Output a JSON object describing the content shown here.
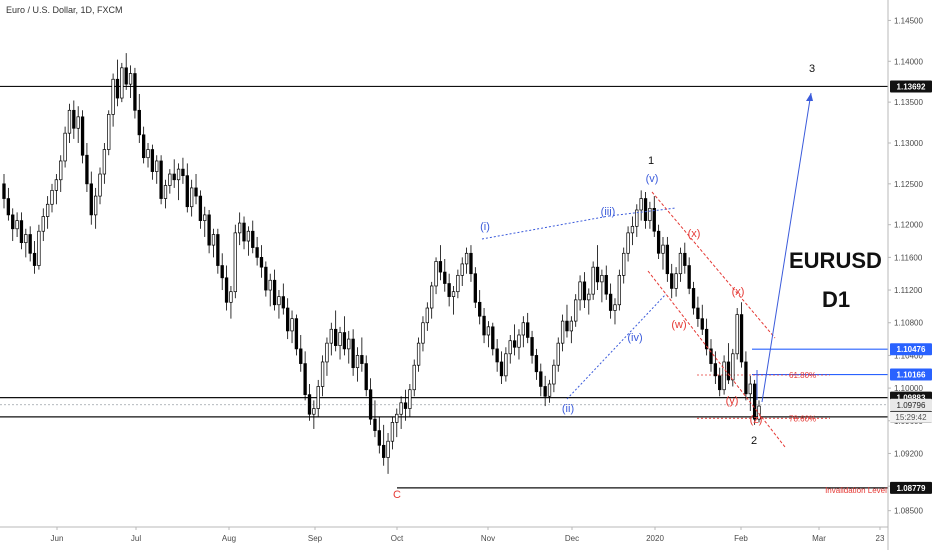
{
  "chart_data": {
    "type": "candlestick",
    "title": "Euro / U.S. Dollar, 1D, FXCM",
    "symbol_label": "EURUSD",
    "timeframe_label": "D1",
    "x_ticks": [
      "Jun",
      "Jul",
      "Aug",
      "Sep",
      "Oct",
      "Nov",
      "Dec",
      "2020",
      "Feb",
      "Mar",
      "23"
    ],
    "y_ticks": [
      "1.14500",
      "1.14000",
      "1.13500",
      "1.13000",
      "1.12500",
      "1.12000",
      "1.11600",
      "1.11200",
      "1.10800",
      "1.10400",
      "1.10000",
      "1.09600",
      "1.09200",
      "1.08800",
      "1.08500"
    ],
    "ylim": [
      1.083,
      1.1475
    ],
    "horizontal_levels": [
      {
        "price": 1.13692,
        "label": "1.13692",
        "style": "black"
      },
      {
        "price": 1.10476,
        "label": "1.10476",
        "style": "blue"
      },
      {
        "price": 1.10166,
        "label": "1.10166",
        "style": "blue"
      },
      {
        "price": 1.09883,
        "label": "1.09883",
        "style": "black"
      },
      {
        "price": 1.09648,
        "label": "1.09648",
        "style": "black"
      },
      {
        "price": 1.08779,
        "label": "1.08779",
        "style": "black"
      }
    ],
    "current_price": {
      "label": "1.09796",
      "countdown": "15:29:42"
    },
    "fib_levels": [
      {
        "label": "61.80%",
        "price": 1.1016
      },
      {
        "label": "78.60%",
        "price": 1.0963
      }
    ],
    "annotations": {
      "invalidation": "Invalidation Level",
      "wave_major": [
        "1",
        "2",
        "3",
        "C"
      ],
      "wave_minor_blue": [
        "(i)",
        "(ii)",
        "(iii)",
        "(iv)",
        "(v)"
      ],
      "wave_minor_red": [
        "(w)",
        "(x)",
        "(x)",
        "(y)",
        "(z)"
      ]
    },
    "candles": [
      [
        1.125,
        1.1262,
        1.122,
        1.1232
      ],
      [
        1.1232,
        1.1245,
        1.1205,
        1.1212
      ],
      [
        1.1212,
        1.122,
        1.118,
        1.1195
      ],
      [
        1.1195,
        1.1215,
        1.1185,
        1.1205
      ],
      [
        1.1205,
        1.1215,
        1.117,
        1.1178
      ],
      [
        1.1178,
        1.1195,
        1.116,
        1.1188
      ],
      [
        1.1188,
        1.1198,
        1.1155,
        1.1165
      ],
      [
        1.1165,
        1.118,
        1.114,
        1.115
      ],
      [
        1.115,
        1.12,
        1.1145,
        1.1192
      ],
      [
        1.1192,
        1.122,
        1.118,
        1.121
      ],
      [
        1.121,
        1.1235,
        1.1195,
        1.1225
      ],
      [
        1.1225,
        1.125,
        1.1215,
        1.1242
      ],
      [
        1.1242,
        1.1262,
        1.1225,
        1.1255
      ],
      [
        1.1255,
        1.1285,
        1.124,
        1.1278
      ],
      [
        1.1278,
        1.132,
        1.127,
        1.1312
      ],
      [
        1.1312,
        1.1348,
        1.13,
        1.134
      ],
      [
        1.134,
        1.1352,
        1.1305,
        1.1318
      ],
      [
        1.1318,
        1.1345,
        1.13,
        1.1332
      ],
      [
        1.1332,
        1.134,
        1.1275,
        1.1285
      ],
      [
        1.1285,
        1.13,
        1.124,
        1.125
      ],
      [
        1.125,
        1.1265,
        1.12,
        1.1212
      ],
      [
        1.1212,
        1.1245,
        1.1195,
        1.1235
      ],
      [
        1.1235,
        1.127,
        1.1225,
        1.1262
      ],
      [
        1.1262,
        1.13,
        1.125,
        1.1292
      ],
      [
        1.1292,
        1.134,
        1.1285,
        1.1335
      ],
      [
        1.1335,
        1.1385,
        1.132,
        1.1378
      ],
      [
        1.1378,
        1.1402,
        1.1345,
        1.1355
      ],
      [
        1.1355,
        1.1398,
        1.135,
        1.1392
      ],
      [
        1.1392,
        1.141,
        1.1365,
        1.1372
      ],
      [
        1.1372,
        1.1395,
        1.1355,
        1.1385
      ],
      [
        1.1385,
        1.1392,
        1.133,
        1.134
      ],
      [
        1.134,
        1.136,
        1.13,
        1.131
      ],
      [
        1.131,
        1.132,
        1.1275,
        1.1282
      ],
      [
        1.1282,
        1.13,
        1.127,
        1.1292
      ],
      [
        1.1292,
        1.1298,
        1.1255,
        1.1265
      ],
      [
        1.1265,
        1.1285,
        1.125,
        1.1278
      ],
      [
        1.1278,
        1.1285,
        1.1225,
        1.1232
      ],
      [
        1.1232,
        1.1255,
        1.122,
        1.1248
      ],
      [
        1.1248,
        1.1268,
        1.1238,
        1.1262
      ],
      [
        1.1262,
        1.128,
        1.1245,
        1.1255
      ],
      [
        1.1255,
        1.1275,
        1.123,
        1.1268
      ],
      [
        1.1268,
        1.1282,
        1.125,
        1.126
      ],
      [
        1.126,
        1.1275,
        1.1215,
        1.1222
      ],
      [
        1.1222,
        1.1255,
        1.121,
        1.1245
      ],
      [
        1.1245,
        1.1262,
        1.1225,
        1.1235
      ],
      [
        1.1235,
        1.1242,
        1.1195,
        1.1205
      ],
      [
        1.1205,
        1.1222,
        1.1185,
        1.1212
      ],
      [
        1.1212,
        1.1218,
        1.1165,
        1.1175
      ],
      [
        1.1175,
        1.1195,
        1.116,
        1.1188
      ],
      [
        1.1188,
        1.1195,
        1.114,
        1.115
      ],
      [
        1.115,
        1.1165,
        1.112,
        1.1135
      ],
      [
        1.1135,
        1.115,
        1.1095,
        1.1105
      ],
      [
        1.1105,
        1.1125,
        1.1085,
        1.1118
      ],
      [
        1.1118,
        1.12,
        1.111,
        1.119
      ],
      [
        1.119,
        1.1215,
        1.1175,
        1.1202
      ],
      [
        1.1202,
        1.121,
        1.117,
        1.118
      ],
      [
        1.118,
        1.1198,
        1.1162,
        1.1192
      ],
      [
        1.1192,
        1.1205,
        1.1165,
        1.1172
      ],
      [
        1.1172,
        1.1185,
        1.115,
        1.116
      ],
      [
        1.116,
        1.1175,
        1.1135,
        1.1148
      ],
      [
        1.1148,
        1.1155,
        1.1112,
        1.112
      ],
      [
        1.112,
        1.114,
        1.11,
        1.1132
      ],
      [
        1.1132,
        1.1145,
        1.1095,
        1.1102
      ],
      [
        1.1102,
        1.112,
        1.1085,
        1.1112
      ],
      [
        1.1112,
        1.1128,
        1.109,
        1.1098
      ],
      [
        1.1098,
        1.111,
        1.106,
        1.107
      ],
      [
        1.107,
        1.1095,
        1.1055,
        1.1085
      ],
      [
        1.1085,
        1.109,
        1.104,
        1.1048
      ],
      [
        1.1048,
        1.1065,
        1.102,
        1.103
      ],
      [
        1.103,
        1.1045,
        1.0985,
        1.0992
      ],
      [
        1.0992,
        1.1005,
        1.096,
        1.0968
      ],
      [
        1.0968,
        1.0985,
        1.095,
        1.0975
      ],
      [
        1.0975,
        1.101,
        1.0965,
        1.1002
      ],
      [
        1.1002,
        1.104,
        1.099,
        1.1032
      ],
      [
        1.1032,
        1.1062,
        1.1015,
        1.1055
      ],
      [
        1.1055,
        1.108,
        1.104,
        1.1072
      ],
      [
        1.1072,
        1.1095,
        1.1045,
        1.1052
      ],
      [
        1.1052,
        1.1075,
        1.1035,
        1.1068
      ],
      [
        1.1068,
        1.1088,
        1.104,
        1.1048
      ],
      [
        1.1048,
        1.107,
        1.103,
        1.106
      ],
      [
        1.106,
        1.1072,
        1.1015,
        1.1025
      ],
      [
        1.1025,
        1.105,
        1.1008,
        1.104
      ],
      [
        1.104,
        1.1062,
        1.102,
        1.103
      ],
      [
        1.103,
        1.104,
        1.099,
        1.0998
      ],
      [
        1.0998,
        1.1012,
        1.0955,
        1.0962
      ],
      [
        1.0962,
        1.0985,
        1.094,
        1.0948
      ],
      [
        1.0948,
        1.0965,
        1.092,
        1.093
      ],
      [
        1.093,
        1.0955,
        1.0905,
        1.0915
      ],
      [
        1.0915,
        1.0945,
        1.0895,
        1.0935
      ],
      [
        1.0935,
        1.0965,
        1.0925,
        1.0958
      ],
      [
        1.0958,
        1.0975,
        1.094,
        1.0968
      ],
      [
        1.0968,
        1.099,
        1.095,
        1.0982
      ],
      [
        1.0982,
        1.0998,
        1.096,
        1.0975
      ],
      [
        1.0975,
        1.1005,
        1.0965,
        1.0998
      ],
      [
        1.0998,
        1.1035,
        1.099,
        1.1028
      ],
      [
        1.1028,
        1.1062,
        1.102,
        1.1055
      ],
      [
        1.1055,
        1.1088,
        1.1045,
        1.108
      ],
      [
        1.108,
        1.1105,
        1.107,
        1.1098
      ],
      [
        1.1098,
        1.113,
        1.1085,
        1.1125
      ],
      [
        1.1125,
        1.116,
        1.1115,
        1.1155
      ],
      [
        1.1155,
        1.1175,
        1.1132,
        1.1142
      ],
      [
        1.1142,
        1.1158,
        1.1118,
        1.1128
      ],
      [
        1.1128,
        1.114,
        1.11,
        1.1112
      ],
      [
        1.1112,
        1.1125,
        1.109,
        1.1118
      ],
      [
        1.1118,
        1.1145,
        1.111,
        1.1138
      ],
      [
        1.1138,
        1.116,
        1.1125,
        1.1152
      ],
      [
        1.1152,
        1.1172,
        1.114,
        1.1165
      ],
      [
        1.1165,
        1.1175,
        1.113,
        1.114
      ],
      [
        1.114,
        1.1148,
        1.1098,
        1.1105
      ],
      [
        1.1105,
        1.112,
        1.1078,
        1.1088
      ],
      [
        1.1088,
        1.1098,
        1.1055,
        1.1065
      ],
      [
        1.1065,
        1.1082,
        1.105,
        1.1075
      ],
      [
        1.1075,
        1.108,
        1.104,
        1.1048
      ],
      [
        1.1048,
        1.106,
        1.102,
        1.1032
      ],
      [
        1.1032,
        1.1045,
        1.1005,
        1.1015
      ],
      [
        1.1015,
        1.105,
        1.1008,
        1.1042
      ],
      [
        1.1042,
        1.1065,
        1.103,
        1.1058
      ],
      [
        1.1058,
        1.1078,
        1.104,
        1.105
      ],
      [
        1.105,
        1.1072,
        1.1035,
        1.1065
      ],
      [
        1.1065,
        1.1088,
        1.105,
        1.108
      ],
      [
        1.108,
        1.1092,
        1.1055,
        1.1062
      ],
      [
        1.1062,
        1.107,
        1.103,
        1.104
      ],
      [
        1.104,
        1.1048,
        1.101,
        1.102
      ],
      [
        1.102,
        1.103,
        1.099,
        1.1002
      ],
      [
        1.1002,
        1.1015,
        1.0978,
        1.099
      ],
      [
        1.099,
        1.101,
        1.0982,
        1.1005
      ],
      [
        1.1005,
        1.1035,
        1.0995,
        1.1028
      ],
      [
        1.1028,
        1.1062,
        1.102,
        1.1055
      ],
      [
        1.1055,
        1.109,
        1.1045,
        1.1082
      ],
      [
        1.1082,
        1.1102,
        1.1062,
        1.107
      ],
      [
        1.107,
        1.1088,
        1.1055,
        1.1082
      ],
      [
        1.1082,
        1.1115,
        1.1075,
        1.1108
      ],
      [
        1.1108,
        1.1138,
        1.1095,
        1.113
      ],
      [
        1.113,
        1.1142,
        1.1098,
        1.1108
      ],
      [
        1.1108,
        1.1122,
        1.109,
        1.1115
      ],
      [
        1.1115,
        1.1155,
        1.1108,
        1.1148
      ],
      [
        1.1148,
        1.1175,
        1.112,
        1.113
      ],
      [
        1.113,
        1.1145,
        1.1105,
        1.1138
      ],
      [
        1.1138,
        1.115,
        1.1108,
        1.1115
      ],
      [
        1.1115,
        1.1128,
        1.1085,
        1.1095
      ],
      [
        1.1095,
        1.111,
        1.1078,
        1.1102
      ],
      [
        1.1102,
        1.1145,
        1.1095,
        1.1138
      ],
      [
        1.1138,
        1.1172,
        1.1128,
        1.1165
      ],
      [
        1.1165,
        1.1198,
        1.1155,
        1.119
      ],
      [
        1.119,
        1.121,
        1.1175,
        1.1198
      ],
      [
        1.1198,
        1.1225,
        1.1185,
        1.1218
      ],
      [
        1.1218,
        1.1242,
        1.1205,
        1.1232
      ],
      [
        1.1232,
        1.124,
        1.1195,
        1.1205
      ],
      [
        1.1205,
        1.1228,
        1.1195,
        1.122
      ],
      [
        1.122,
        1.1235,
        1.1185,
        1.1192
      ],
      [
        1.1192,
        1.12,
        1.1158,
        1.1165
      ],
      [
        1.1165,
        1.1185,
        1.1145,
        1.1175
      ],
      [
        1.1175,
        1.1185,
        1.113,
        1.114
      ],
      [
        1.114,
        1.1152,
        1.111,
        1.1122
      ],
      [
        1.1122,
        1.1148,
        1.1112,
        1.114
      ],
      [
        1.114,
        1.1172,
        1.113,
        1.1165
      ],
      [
        1.1165,
        1.1178,
        1.114,
        1.115
      ],
      [
        1.115,
        1.116,
        1.1115,
        1.1122
      ],
      [
        1.1122,
        1.113,
        1.109,
        1.1098
      ],
      [
        1.1098,
        1.1112,
        1.1075,
        1.1085
      ],
      [
        1.1085,
        1.1102,
        1.1065,
        1.1072
      ],
      [
        1.1072,
        1.1085,
        1.104,
        1.1048
      ],
      [
        1.1048,
        1.106,
        1.102,
        1.103
      ],
      [
        1.103,
        1.1045,
        1.1005,
        1.1015
      ],
      [
        1.1015,
        1.1025,
        1.099,
        1.0998
      ],
      [
        1.0998,
        1.104,
        1.0992,
        1.1032
      ],
      [
        1.1032,
        1.1055,
        1.1005,
        1.101
      ],
      [
        1.101,
        1.1048,
        1.1002,
        1.1042
      ],
      [
        1.1042,
        1.1098,
        1.1035,
        1.109
      ],
      [
        1.109,
        1.1105,
        1.1025,
        1.1032
      ],
      [
        1.1032,
        1.1045,
        1.0985,
        1.0993
      ],
      [
        1.0993,
        1.1015,
        1.0972,
        1.1005
      ],
      [
        1.1005,
        1.101,
        1.0955,
        1.0962
      ],
      [
        1.0962,
        1.0985,
        1.0958,
        1.0978
      ]
    ]
  }
}
